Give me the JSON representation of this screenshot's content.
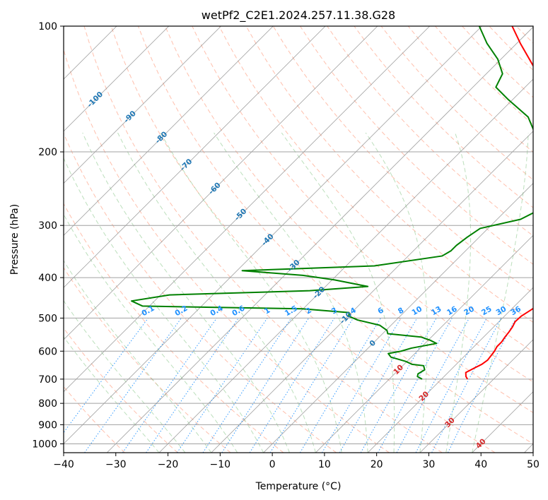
{
  "chart_data": {
    "type": "line",
    "title": "wetPf2_C2E1.2024.257.11.38.G28",
    "xlabel": "Temperature (°C)",
    "ylabel": "Pressure (hPa)",
    "xlim": [
      -40,
      50
    ],
    "ylim": [
      1050,
      100
    ],
    "y_scale": "log",
    "grid": true,
    "x_ticks": [
      -40,
      -30,
      -20,
      -10,
      0,
      10,
      20,
      30,
      40,
      50
    ],
    "x_tick_labels": [
      "−40",
      "−30",
      "−20",
      "−10",
      "0",
      "10",
      "20",
      "30",
      "40",
      "50"
    ],
    "y_ticks": [
      100,
      200,
      300,
      400,
      500,
      600,
      700,
      800,
      900,
      1000
    ],
    "y_tick_labels": [
      "100",
      "200",
      "300",
      "400",
      "500",
      "600",
      "700",
      "800",
      "900",
      "1000"
    ],
    "colors": {
      "temperature": "#ff0000",
      "dewpoint": "#008000",
      "isotherm": "#808080",
      "dry_adiabat": "#ff8c69",
      "moist_adiabat": "#8fc98f",
      "mixing_ratio": "#1e90ff",
      "blue_label": "#1f77b4",
      "red_label": "#d62728"
    },
    "isotherm_labels": [
      {
        "text": "-100",
        "t": -100,
        "p": 150
      },
      {
        "text": "-90",
        "t": -90,
        "p": 165
      },
      {
        "text": "-80",
        "t": -80,
        "p": 185
      },
      {
        "text": "-70",
        "t": -70,
        "p": 215
      },
      {
        "text": "-60",
        "t": -60,
        "p": 245
      },
      {
        "text": "-50",
        "t": -50,
        "p": 283
      },
      {
        "text": "-40",
        "t": -40,
        "p": 325
      },
      {
        "text": "-30",
        "t": -30,
        "p": 375
      },
      {
        "text": "-20",
        "t": -20,
        "p": 435
      },
      {
        "text": "-10",
        "t": -10,
        "p": 500
      },
      {
        "text": "0",
        "t": 0,
        "p": 575
      },
      {
        "text": "10",
        "t": 10,
        "p": 665
      },
      {
        "text": "20",
        "t": 20,
        "p": 770
      },
      {
        "text": "30",
        "t": 30,
        "p": 890
      },
      {
        "text": "40",
        "t": 40,
        "p": 1000
      }
    ],
    "mixing_ratio_labels": [
      "0.1",
      "0.2",
      "0.4",
      "0.6",
      "1",
      "1.5",
      "2",
      "3",
      "4",
      "6",
      "8",
      "10",
      "13",
      "16",
      "20",
      "25",
      "30",
      "36"
    ],
    "mixing_ratio_values": [
      0.1,
      0.2,
      0.4,
      0.6,
      1,
      1.5,
      2,
      3,
      4,
      6,
      8,
      10,
      13,
      16,
      20,
      25,
      30,
      36
    ],
    "mixing_ratio_label_pressure": 500,
    "series": [
      {
        "key": "temperature",
        "points": [
          [
            700,
            25.0
          ],
          [
            690,
            24.2
          ],
          [
            675,
            23.4
          ],
          [
            660,
            24.1
          ],
          [
            645,
            24.9
          ],
          [
            630,
            25.2
          ],
          [
            615,
            25.0
          ],
          [
            600,
            24.8
          ],
          [
            585,
            24.4
          ],
          [
            570,
            24.4
          ],
          [
            555,
            24.1
          ],
          [
            540,
            23.9
          ],
          [
            525,
            23.6
          ],
          [
            510,
            23.1
          ],
          [
            495,
            23.2
          ],
          [
            480,
            23.8
          ],
          [
            470,
            24.2
          ],
          [
            460,
            23.4
          ],
          [
            450,
            23.3
          ],
          [
            440,
            23.5
          ],
          [
            425,
            23.2
          ],
          [
            400,
            22.4
          ],
          [
            380,
            21.1
          ],
          [
            350,
            19.0
          ],
          [
            320,
            17.4
          ],
          [
            300,
            15.9
          ],
          [
            285,
            13.7
          ],
          [
            270,
            10.8
          ],
          [
            255,
            8.0
          ],
          [
            240,
            7.3
          ],
          [
            230,
            6.1
          ],
          [
            220,
            3.5
          ],
          [
            200,
            -0.6
          ],
          [
            185,
            -3.9
          ],
          [
            170,
            -7.6
          ],
          [
            155,
            -11.6
          ],
          [
            140,
            -16.3
          ],
          [
            125,
            -22.3
          ],
          [
            110,
            -29.3
          ],
          [
            100,
            -34.2
          ]
        ]
      },
      {
        "key": "dewpoint",
        "points": [
          [
            700,
            16.3
          ],
          [
            690,
            14.9
          ],
          [
            680,
            14.5
          ],
          [
            665,
            15.0
          ],
          [
            650,
            14.0
          ],
          [
            645,
            11.5
          ],
          [
            635,
            9.8
          ],
          [
            620,
            6.1
          ],
          [
            608,
            4.9
          ],
          [
            600,
            6.9
          ],
          [
            590,
            8.3
          ],
          [
            575,
            12.2
          ],
          [
            565,
            10.4
          ],
          [
            555,
            8.0
          ],
          [
            545,
            1.0
          ],
          [
            535,
            0.2
          ],
          [
            520,
            -2.2
          ],
          [
            505,
            -7.5
          ],
          [
            495,
            -9.8
          ],
          [
            485,
            -10.5
          ],
          [
            475,
            -20.2
          ],
          [
            468,
            -51.3
          ],
          [
            455,
            -54.4
          ],
          [
            440,
            -48.3
          ],
          [
            430,
            -22.2
          ],
          [
            420,
            -11.9
          ],
          [
            405,
            -19.6
          ],
          [
            395,
            -26.5
          ],
          [
            385,
            -39.0
          ],
          [
            375,
            -14.6
          ],
          [
            355,
            -3.5
          ],
          [
            345,
            -2.8
          ],
          [
            335,
            -2.8
          ],
          [
            320,
            -2.3
          ],
          [
            305,
            -1.5
          ],
          [
            290,
            4.5
          ],
          [
            270,
            6.9
          ],
          [
            255,
            6.8
          ],
          [
            240,
            6.1
          ],
          [
            225,
            3.5
          ],
          [
            210,
            -1.8
          ],
          [
            195,
            -5.7
          ],
          [
            180,
            -9.4
          ],
          [
            165,
            -13.7
          ],
          [
            150,
            -20.8
          ],
          [
            140,
            -25.6
          ],
          [
            130,
            -26.9
          ],
          [
            120,
            -30.6
          ],
          [
            110,
            -35.7
          ],
          [
            100,
            -40.5
          ]
        ]
      }
    ]
  }
}
